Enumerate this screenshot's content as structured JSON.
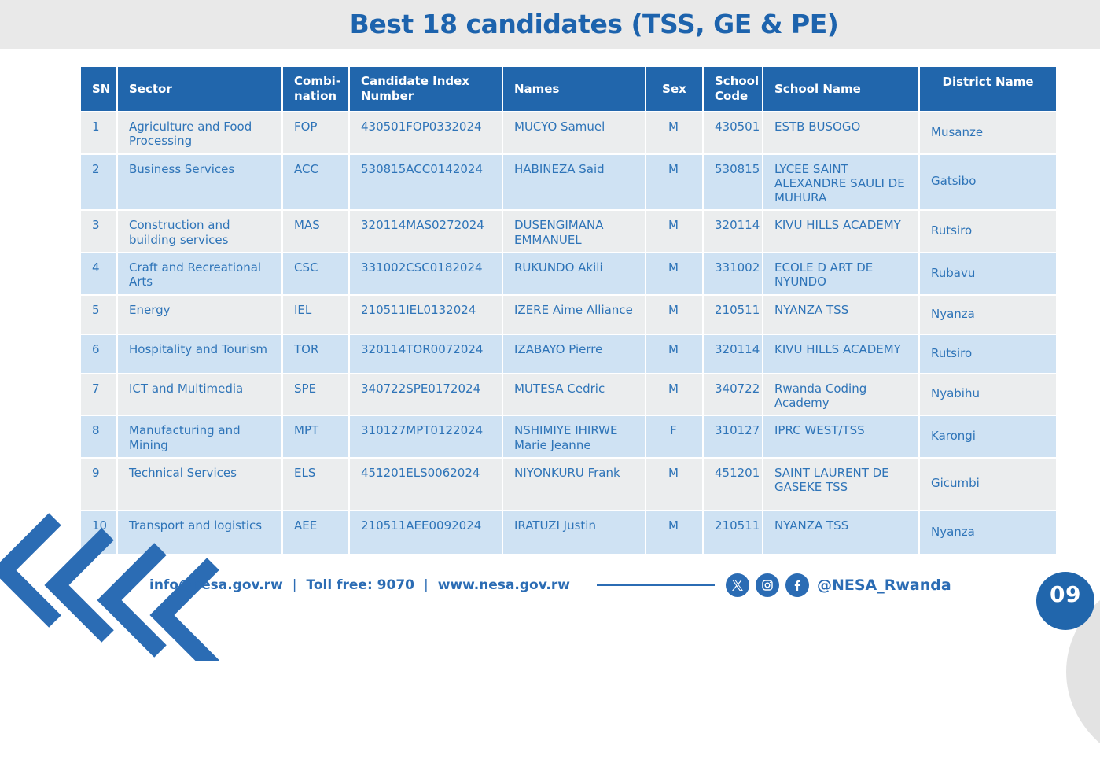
{
  "title": "Best 18 candidates (TSS, GE & PE)",
  "table": {
    "columns": [
      "SN",
      "Sector",
      "Combi-\nnation",
      "Candidate Index\nNumber",
      "Names",
      "Sex",
      "School\nCode",
      "School Name",
      "District Name"
    ],
    "rows": [
      [
        "1",
        "Agriculture and Food Processing",
        "FOP",
        "430501FOP0332024",
        "MUCYO Samuel",
        "M",
        "430501",
        "ESTB BUSOGO",
        "Musanze"
      ],
      [
        "2",
        "Business Services",
        "ACC",
        "530815ACC0142024",
        "HABINEZA Said",
        "M",
        "530815",
        "LYCEE SAINT ALEXANDRE SAULI DE MUHURA",
        "Gatsibo"
      ],
      [
        "3",
        "Construction and building services",
        "MAS",
        "320114MAS0272024",
        "DUSENGIMANA EMMANUEL",
        "M",
        "320114",
        "KIVU HILLS ACADEMY",
        "Rutsiro"
      ],
      [
        "4",
        "Craft and Recreational Arts",
        "CSC",
        "331002CSC0182024",
        "RUKUNDO Akili",
        "M",
        "331002",
        "ECOLE D ART DE NYUNDO",
        "Rubavu"
      ],
      [
        "5",
        "Energy",
        "IEL",
        "210511IEL0132024",
        "IZERE Aime Alliance",
        "M",
        "210511",
        "NYANZA TSS",
        "Nyanza"
      ],
      [
        "6",
        "Hospitality and Tourism",
        "TOR",
        "320114TOR0072024",
        "IZABAYO Pierre",
        "M",
        "320114",
        "KIVU HILLS ACADEMY",
        "Rutsiro"
      ],
      [
        "7",
        "ICT and Multimedia",
        "SPE",
        "340722SPE0172024",
        "MUTESA Cedric",
        "M",
        "340722",
        "Rwanda Coding Academy",
        "Nyabihu"
      ],
      [
        "8",
        "Manufacturing and Mining",
        "MPT",
        "310127MPT0122024",
        "NSHIMIYE IHIRWE Marie Jeanne",
        "F",
        "310127",
        "IPRC WEST/TSS",
        "Karongi"
      ],
      [
        "9",
        "Technical Services",
        "ELS",
        "451201ELS0062024",
        "NIYONKURU Frank",
        "M",
        "451201",
        "SAINT LAURENT DE GASEKE TSS",
        "Gicumbi"
      ],
      [
        "10",
        "Transport and logistics",
        "AEE",
        "210511AEE0092024",
        "IRATUZI Justin",
        "M",
        "210511",
        "NYANZA TSS",
        "Nyanza"
      ]
    ]
  },
  "footer": {
    "email": "info@nesa.gov.rw",
    "sep1": "|",
    "toll_free": "Toll free: 9070",
    "sep2": "|",
    "website": "www.nesa.gov.rw",
    "social_handle": "@NESA_Rwanda",
    "page_number": "09"
  },
  "icons": {
    "x": "x-twitter-icon",
    "instagram": "instagram-icon",
    "facebook": "facebook-icon",
    "chevrons": "chevron-left-decoration"
  },
  "colors": {
    "header_blue": "#2166ac",
    "row_gray": "#ebedee",
    "row_blue": "#cfe2f3",
    "cell_text_blue": "#2e74b8",
    "title_blue": "#1d63ad",
    "accent_blue": "#2b6cb4",
    "band_gray": "#e9e9e9"
  }
}
